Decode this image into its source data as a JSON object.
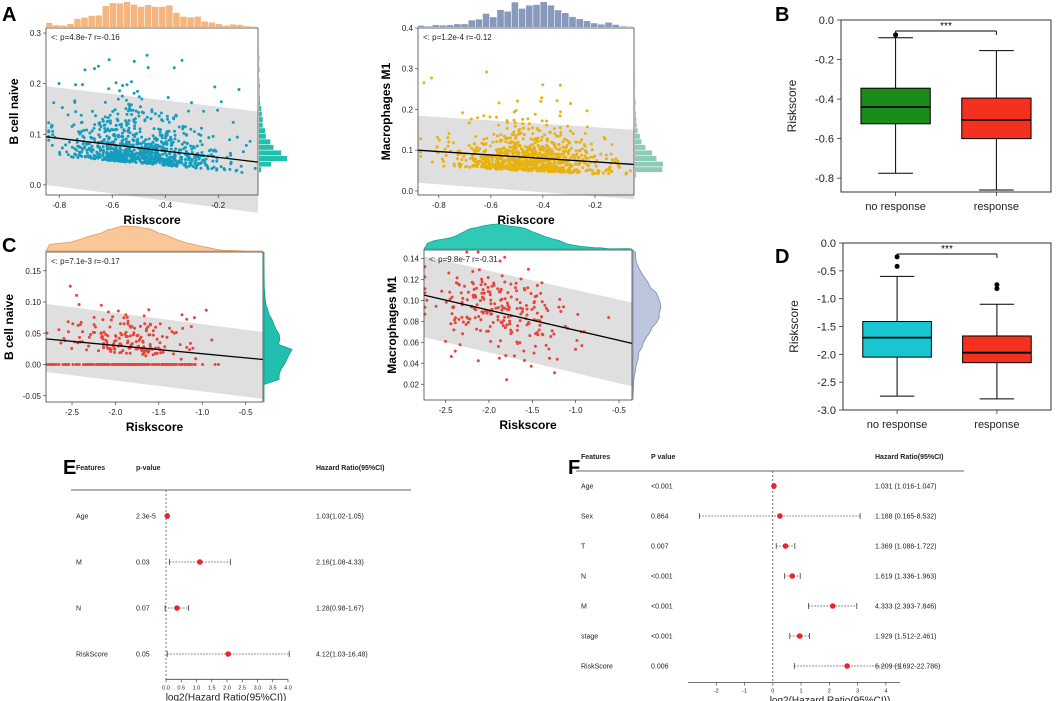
{
  "colors": {
    "orange_hist": "#F4B67E",
    "blue_hist": "#8899BB",
    "teal_hist": "#21BFAD",
    "sage_hist": "#8ECBB6",
    "scatter_a1": "#159DBF",
    "scatter_a2": "#E9B20F",
    "scatter_c": "#E8453C",
    "green_box": "#1A8C1A",
    "red_box": "#F4301E",
    "cyan_box": "#17C6D1",
    "forest_dot": "#E8252B",
    "band": "#D9D9D9"
  },
  "panels": {
    "A": "A",
    "B": "B",
    "C": "C",
    "D": "D",
    "E": "E",
    "F": "F"
  },
  "chart_data": [
    {
      "id": "A1",
      "type": "scatter",
      "title": "",
      "xlabel": "Riskscore",
      "ylabel": "B cell naive",
      "annotation": "<: p=4.8e-7 r=-0.16",
      "xlim": [
        -0.85,
        -0.05
      ],
      "ylim": [
        -0.02,
        0.31
      ],
      "xticks": [
        -0.8,
        -0.6,
        -0.4,
        -0.2
      ],
      "xtick_labels": [
        "-0.8",
        "-0.6",
        "-0.4",
        "-0.2"
      ],
      "yticks": [
        0.0,
        0.1,
        0.2,
        0.3
      ],
      "ytick_labels": [
        "0.0",
        "0.1",
        "0.2",
        "0.3"
      ],
      "fit": {
        "x": [
          -0.85,
          -0.05
        ],
        "y": [
          0.095,
          0.045
        ]
      },
      "band": {
        "upper": [
          0.195,
          0.145
        ],
        "lower": [
          0.0,
          -0.055
        ]
      },
      "point_count": 900,
      "x_center": -0.48,
      "x_spread": 0.15,
      "y_mode": "skew",
      "y_scale": 0.06,
      "seed": 11,
      "marginal": "histogram"
    },
    {
      "id": "A2",
      "type": "scatter",
      "title": "",
      "xlabel": "Riskscore",
      "ylabel": "Macrophages M1",
      "annotation": "<: p=1.2e-4 r=-0.12",
      "xlim": [
        -0.88,
        -0.05
      ],
      "ylim": [
        -0.01,
        0.4
      ],
      "xticks": [
        -0.8,
        -0.6,
        -0.4,
        -0.2
      ],
      "xtick_labels": [
        "-0.8",
        "-0.6",
        "-0.4",
        "-0.2"
      ],
      "yticks": [
        0.0,
        0.1,
        0.2,
        0.3,
        0.4
      ],
      "ytick_labels": [
        "0.0",
        "0.1",
        "0.2",
        "0.3",
        "0.4"
      ],
      "fit": {
        "x": [
          -0.88,
          -0.05
        ],
        "y": [
          0.1,
          0.065
        ]
      },
      "band": {
        "upper": [
          0.185,
          0.15
        ],
        "lower": [
          0.02,
          -0.02
        ]
      },
      "point_count": 900,
      "x_center": -0.45,
      "x_spread": 0.14,
      "y_mode": "skew",
      "y_scale": 0.065,
      "seed": 23,
      "marginal": "histogram"
    },
    {
      "id": "B",
      "type": "box",
      "title": "",
      "xlabel": "",
      "ylabel": "Riskscore",
      "categories": [
        "no response",
        "response"
      ],
      "ylim": [
        -0.87,
        0.0
      ],
      "yticks": [
        0.0,
        -0.2,
        -0.4,
        -0.6,
        -0.8
      ],
      "ytick_labels": [
        "0.0",
        "-0.2",
        "-0.4",
        "-0.6",
        "-0.8"
      ],
      "boxes": [
        {
          "q1": -0.525,
          "median": -0.44,
          "q3": -0.345,
          "whisker_low": -0.775,
          "whisker_high": -0.09,
          "outliers": [
            -0.075
          ]
        },
        {
          "q1": -0.6,
          "median": -0.505,
          "q3": -0.395,
          "whisker_low": -0.86,
          "whisker_high": -0.155,
          "outliers": []
        }
      ],
      "significance": "***"
    },
    {
      "id": "C1",
      "type": "scatter",
      "title": "",
      "xlabel": "Riskscore",
      "ylabel": "B cell naive",
      "annotation": "<: p=7.1e-3 r=-0.17",
      "xlim": [
        -2.8,
        -0.3
      ],
      "ylim": [
        -0.06,
        0.18
      ],
      "xticks": [
        -2.5,
        -2.0,
        -1.5,
        -1.0,
        -0.5
      ],
      "xtick_labels": [
        "-2.5",
        "-2.0",
        "-1.5",
        "-1.0",
        "-0.5"
      ],
      "yticks": [
        -0.05,
        0.0,
        0.05,
        0.1,
        0.15
      ],
      "ytick_labels": [
        "-0.05",
        "0.00",
        "0.05",
        "0.10",
        "0.15"
      ],
      "fit": {
        "x": [
          -2.8,
          -0.3
        ],
        "y": [
          0.041,
          0.008
        ]
      },
      "band": {
        "upper": [
          0.097,
          0.052
        ],
        "lower": [
          -0.012,
          -0.055
        ]
      },
      "point_count": 330,
      "x_center": -1.85,
      "x_spread": 0.42,
      "y_mode": "zero",
      "y_scale": 0.04,
      "seed": 37,
      "marginal": "density"
    },
    {
      "id": "C2",
      "type": "scatter",
      "title": "",
      "xlabel": "Riskscore",
      "ylabel": "Macrophages M1",
      "annotation": "<: p=9.8e-7 r=-0.31",
      "xlim": [
        -2.75,
        -0.35
      ],
      "ylim": [
        0.005,
        0.148
      ],
      "xticks": [
        -2.5,
        -2.0,
        -1.5,
        -1.0,
        -0.5
      ],
      "xtick_labels": [
        "-2.5",
        "-2.0",
        "-1.5",
        "-1.0",
        "-0.5"
      ],
      "yticks": [
        0.02,
        0.04,
        0.06,
        0.08,
        0.1,
        0.12,
        0.14
      ],
      "ytick_labels": [
        "0.02",
        "0.04",
        "0.06",
        "0.08",
        "0.10",
        "0.12",
        "0.14"
      ],
      "fit": {
        "x": [
          -2.75,
          -0.35
        ],
        "y": [
          0.105,
          0.059
        ]
      },
      "band": {
        "upper": [
          0.142,
          0.098
        ],
        "lower": [
          0.065,
          0.018
        ]
      },
      "point_count": 240,
      "x_center": -1.85,
      "x_spread": 0.45,
      "y_mode": "normal",
      "y_scale": 0.022,
      "seed": 53,
      "marginal": "density"
    },
    {
      "id": "D",
      "type": "box",
      "title": "",
      "xlabel": "",
      "ylabel": "Riskscore",
      "categories": [
        "no response",
        "response"
      ],
      "ylim": [
        -3.0,
        0.0
      ],
      "yticks": [
        0.0,
        -0.5,
        -1.0,
        -1.5,
        -2.0,
        -2.5,
        -3.0
      ],
      "ytick_labels": [
        "0.0",
        "-0.5",
        "-1.0",
        "-1.5",
        "-2.0",
        "-2.5",
        "-3.0"
      ],
      "boxes": [
        {
          "q1": -2.05,
          "median": -1.7,
          "q3": -1.41,
          "whisker_low": -2.75,
          "whisker_high": -0.6,
          "outliers": [
            -0.25,
            -0.42
          ]
        },
        {
          "q1": -2.15,
          "median": -1.97,
          "q3": -1.67,
          "whisker_low": -2.8,
          "whisker_high": -1.1,
          "outliers": [
            -0.75,
            -0.82
          ]
        }
      ],
      "significance": "***"
    },
    {
      "id": "E",
      "type": "forest",
      "headers": {
        "features": "Features",
        "p": "p-value",
        "hr": "Hazard Ratio(95%CI)"
      },
      "xlabel": "log2(Hazard Ratio(95%CI))",
      "xlim": [
        0.0,
        4.0
      ],
      "xticks": [
        0.0,
        0.5,
        1.0,
        1.5,
        2.0,
        2.5,
        3.0,
        3.5,
        4.0
      ],
      "xtick_labels": [
        "0.0",
        "0.5",
        "1.0",
        "1.5",
        "2.0",
        "2.5",
        "3.0",
        "3.5",
        "4.0"
      ],
      "rows": [
        {
          "feature": "Age",
          "p": "2.3e-5",
          "hr_text": "1.03(1.02-1.05)",
          "est": 0.04,
          "low": 0.03,
          "high": 0.07
        },
        {
          "feature": "M",
          "p": "0.03",
          "hr_text": "2.16(1.08-4.33)",
          "est": 1.11,
          "low": 0.11,
          "high": 2.11
        },
        {
          "feature": "N",
          "p": "0.07",
          "hr_text": "1.28(0.98-1.67)",
          "est": 0.36,
          "low": -0.03,
          "high": 0.74
        },
        {
          "feature": "RiskScore",
          "p": "0.05",
          "hr_text": "4.12(1.03-16.48)",
          "est": 2.04,
          "low": 0.04,
          "high": 4.04
        }
      ]
    },
    {
      "id": "F",
      "type": "forest",
      "headers": {
        "features": "Features",
        "p": "P value",
        "hr": "Hazard Ratio(95%CI)"
      },
      "xlabel": "log2(Hazard Ratio(95%CI))",
      "xlim": [
        -3.0,
        4.5
      ],
      "xticks": [
        -2,
        -1,
        0,
        1,
        2,
        3,
        4
      ],
      "xtick_labels": [
        "-2",
        "-1",
        "0",
        "1",
        "2",
        "3",
        "4"
      ],
      "rows": [
        {
          "feature": "Age",
          "p": "<0.001",
          "hr_text": "1.031 (1.016-1.047)",
          "est": 0.04,
          "low": 0.02,
          "high": 0.07
        },
        {
          "feature": "Sex",
          "p": "0.864",
          "hr_text": "1.188 (0.165-8.532)",
          "est": 0.25,
          "low": -2.6,
          "high": 3.09
        },
        {
          "feature": "T",
          "p": "0.007",
          "hr_text": "1.369 (1.088-1.722)",
          "est": 0.45,
          "low": 0.12,
          "high": 0.78
        },
        {
          "feature": "N",
          "p": "<0.001",
          "hr_text": "1.619 (1.336-1.963)",
          "est": 0.69,
          "low": 0.42,
          "high": 0.97
        },
        {
          "feature": "M",
          "p": "<0.001",
          "hr_text": "4.333 (2.393-7.846)",
          "est": 2.12,
          "low": 1.26,
          "high": 2.97
        },
        {
          "feature": "stage",
          "p": "<0.001",
          "hr_text": "1.929 (1.512-2.461)",
          "est": 0.95,
          "low": 0.6,
          "high": 1.3
        },
        {
          "feature": "RiskScore",
          "p": "0.006",
          "hr_text": "6.209 (1.692-22.786)",
          "est": 2.63,
          "low": 0.76,
          "high": 4.51
        }
      ]
    }
  ]
}
